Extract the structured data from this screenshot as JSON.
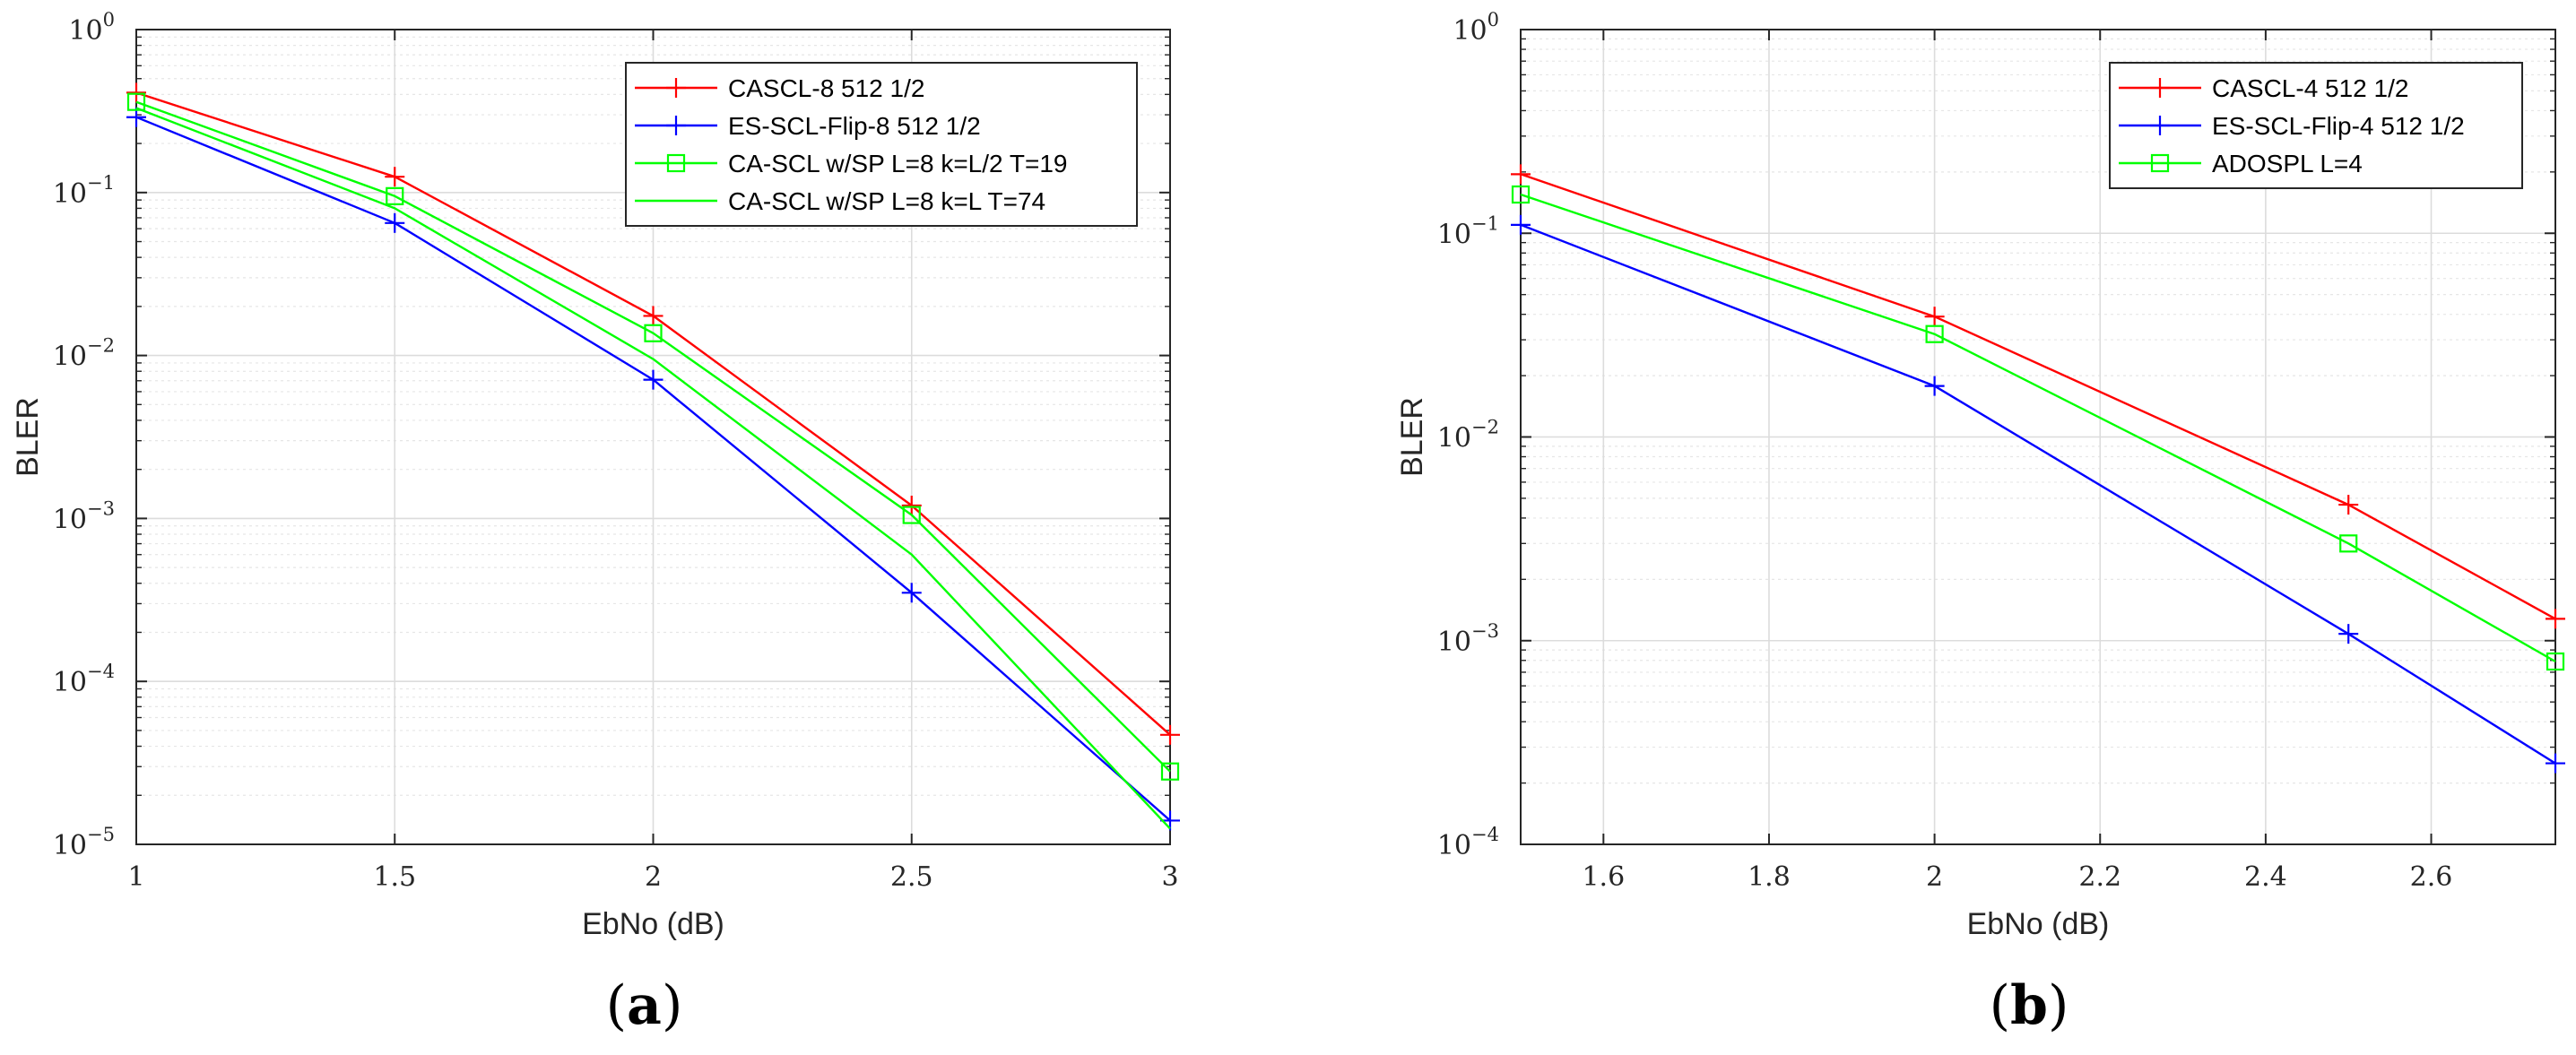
{
  "chart_data": [
    {
      "type": "line",
      "panel_label": "(a)",
      "panel_letter": "a",
      "xlabel": "EbNo (dB)",
      "ylabel": "BLER",
      "xscale": "linear",
      "yscale": "log",
      "xlim": [
        1,
        3
      ],
      "ylim": [
        1e-05,
        1
      ],
      "xticks": [
        1,
        1.5,
        2,
        2.5,
        3
      ],
      "xtick_labels": [
        "1",
        "1.5",
        "2",
        "2.5",
        "3"
      ],
      "ytick_exponents": [
        -5,
        -4,
        -3,
        -2,
        -1,
        0
      ],
      "ytick_base": "10",
      "grid": true,
      "legend_position": "top-right",
      "series": [
        {
          "name": "CASCL-8 512 1/2",
          "color": "#ff0000",
          "marker": "plus",
          "x": [
            1,
            1.5,
            2,
            2.5,
            3
          ],
          "y": [
            0.41,
            0.125,
            0.0175,
            0.0012,
            4.7e-05
          ]
        },
        {
          "name": "ES-SCL-Flip-8 512 1/2",
          "color": "#0000ff",
          "marker": "plus",
          "x": [
            1,
            1.5,
            2,
            2.5,
            3
          ],
          "y": [
            0.29,
            0.065,
            0.0071,
            0.00035,
            1.4e-05
          ]
        },
        {
          "name": "CA-SCL w/SP L=8 k=L/2 T=19",
          "color": "#00ff00",
          "marker": "square",
          "x": [
            1,
            1.5,
            2,
            2.5,
            3
          ],
          "y": [
            0.36,
            0.095,
            0.0137,
            0.00105,
            2.8e-05
          ]
        },
        {
          "name": "CA-SCL w/SP L=8 k=L T=74",
          "color": "#00ff00",
          "marker": "none",
          "x": [
            1,
            1.5,
            2,
            2.5,
            3
          ],
          "y": [
            0.33,
            0.08,
            0.0095,
            0.0006,
            1.25e-05
          ]
        }
      ]
    },
    {
      "type": "line",
      "panel_label": "(b)",
      "panel_letter": "b",
      "xlabel": "EbNo (dB)",
      "ylabel": "BLER",
      "xscale": "linear",
      "yscale": "log",
      "xlim": [
        1.5,
        2.75
      ],
      "ylim": [
        0.0001,
        1
      ],
      "xticks": [
        1.6,
        1.8,
        2,
        2.2,
        2.4,
        2.6
      ],
      "xtick_labels": [
        "1.6",
        "1.8",
        "2",
        "2.2",
        "2.4",
        "2.6"
      ],
      "ytick_exponents": [
        -4,
        -3,
        -2,
        -1,
        0
      ],
      "ytick_base": "10",
      "grid": true,
      "legend_position": "top-right",
      "series": [
        {
          "name": "CASCL-4 512 1/2",
          "color": "#ff0000",
          "marker": "plus",
          "x": [
            1.5,
            2,
            2.5,
            2.75
          ],
          "y": [
            0.195,
            0.039,
            0.00465,
            0.00128
          ]
        },
        {
          "name": "ES-SCL-Flip-4 512 1/2",
          "color": "#0000ff",
          "marker": "plus",
          "x": [
            1.5,
            2,
            2.5,
            2.75
          ],
          "y": [
            0.11,
            0.0178,
            0.00108,
            0.00025
          ]
        },
        {
          "name": "ADOSPL L=4",
          "color": "#00ff00",
          "marker": "square",
          "x": [
            1.5,
            2,
            2.5,
            2.75
          ],
          "y": [
            0.155,
            0.032,
            0.003,
            0.00079
          ]
        }
      ]
    }
  ]
}
